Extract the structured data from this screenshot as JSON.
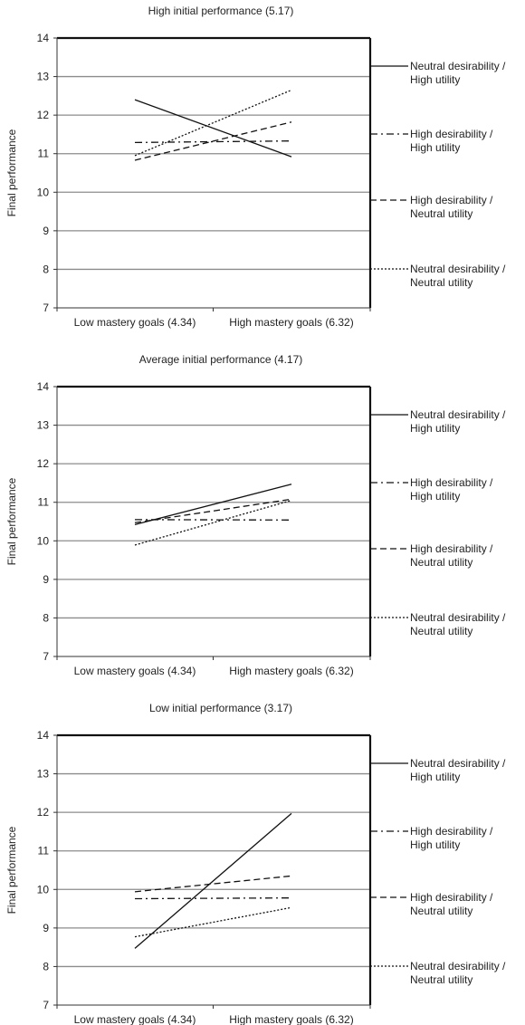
{
  "chart_data": [
    {
      "type": "line",
      "title": "High initial performance (5.17)",
      "xlabel": "",
      "ylabel": "Final performance",
      "ylim": [
        7,
        14
      ],
      "yticks": [
        7,
        8,
        9,
        10,
        11,
        12,
        13,
        14
      ],
      "grid": true,
      "legend_position": "right",
      "categories": [
        "Low mastery goals (4.34)",
        "High mastery goals (6.32)"
      ],
      "series": [
        {
          "name": "Neutral desirability / High utility",
          "values": [
            12.4,
            10.92
          ],
          "style": "solid"
        },
        {
          "name": "High desirability / High utility",
          "values": [
            11.29,
            11.33
          ],
          "style": "dashdot"
        },
        {
          "name": "High desirability / Neutral utility",
          "values": [
            10.83,
            11.82
          ],
          "style": "dashed"
        },
        {
          "name": "Neutral desirability / Neutral utility",
          "values": [
            10.95,
            12.65
          ],
          "style": "dotted"
        }
      ]
    },
    {
      "type": "line",
      "title": "Average initial performance (4.17)",
      "xlabel": "",
      "ylabel": "Final performance",
      "ylim": [
        7,
        14
      ],
      "yticks": [
        7,
        8,
        9,
        10,
        11,
        12,
        13,
        14
      ],
      "grid": true,
      "legend_position": "right",
      "categories": [
        "Low mastery goals (4.34)",
        "High mastery goals (6.32)"
      ],
      "series": [
        {
          "name": "Neutral desirability / High utility",
          "values": [
            10.42,
            11.47
          ],
          "style": "solid"
        },
        {
          "name": "High desirability / High utility",
          "values": [
            10.55,
            10.54
          ],
          "style": "dashdot"
        },
        {
          "name": "High desirability / Neutral utility",
          "values": [
            10.47,
            11.08
          ],
          "style": "dashed"
        },
        {
          "name": "Neutral desirability / Neutral utility",
          "values": [
            9.89,
            11.05
          ],
          "style": "dotted"
        }
      ]
    },
    {
      "type": "line",
      "title": "Low initial performance (3.17)",
      "xlabel": "",
      "ylabel": "Final performance",
      "ylim": [
        7,
        14
      ],
      "yticks": [
        7,
        8,
        9,
        10,
        11,
        12,
        13,
        14
      ],
      "grid": true,
      "legend_position": "right",
      "categories": [
        "Low mastery goals (4.34)",
        "High mastery goals (6.32)"
      ],
      "series": [
        {
          "name": "Neutral desirability / High utility",
          "values": [
            8.47,
            11.97
          ],
          "style": "solid"
        },
        {
          "name": "High desirability / High utility",
          "values": [
            9.76,
            9.78
          ],
          "style": "dashdot"
        },
        {
          "name": "High desirability / Neutral utility",
          "values": [
            9.94,
            10.35
          ],
          "style": "dashed"
        },
        {
          "name": "Neutral desirability / Neutral utility",
          "values": [
            8.77,
            9.53
          ],
          "style": "dotted"
        }
      ]
    }
  ]
}
